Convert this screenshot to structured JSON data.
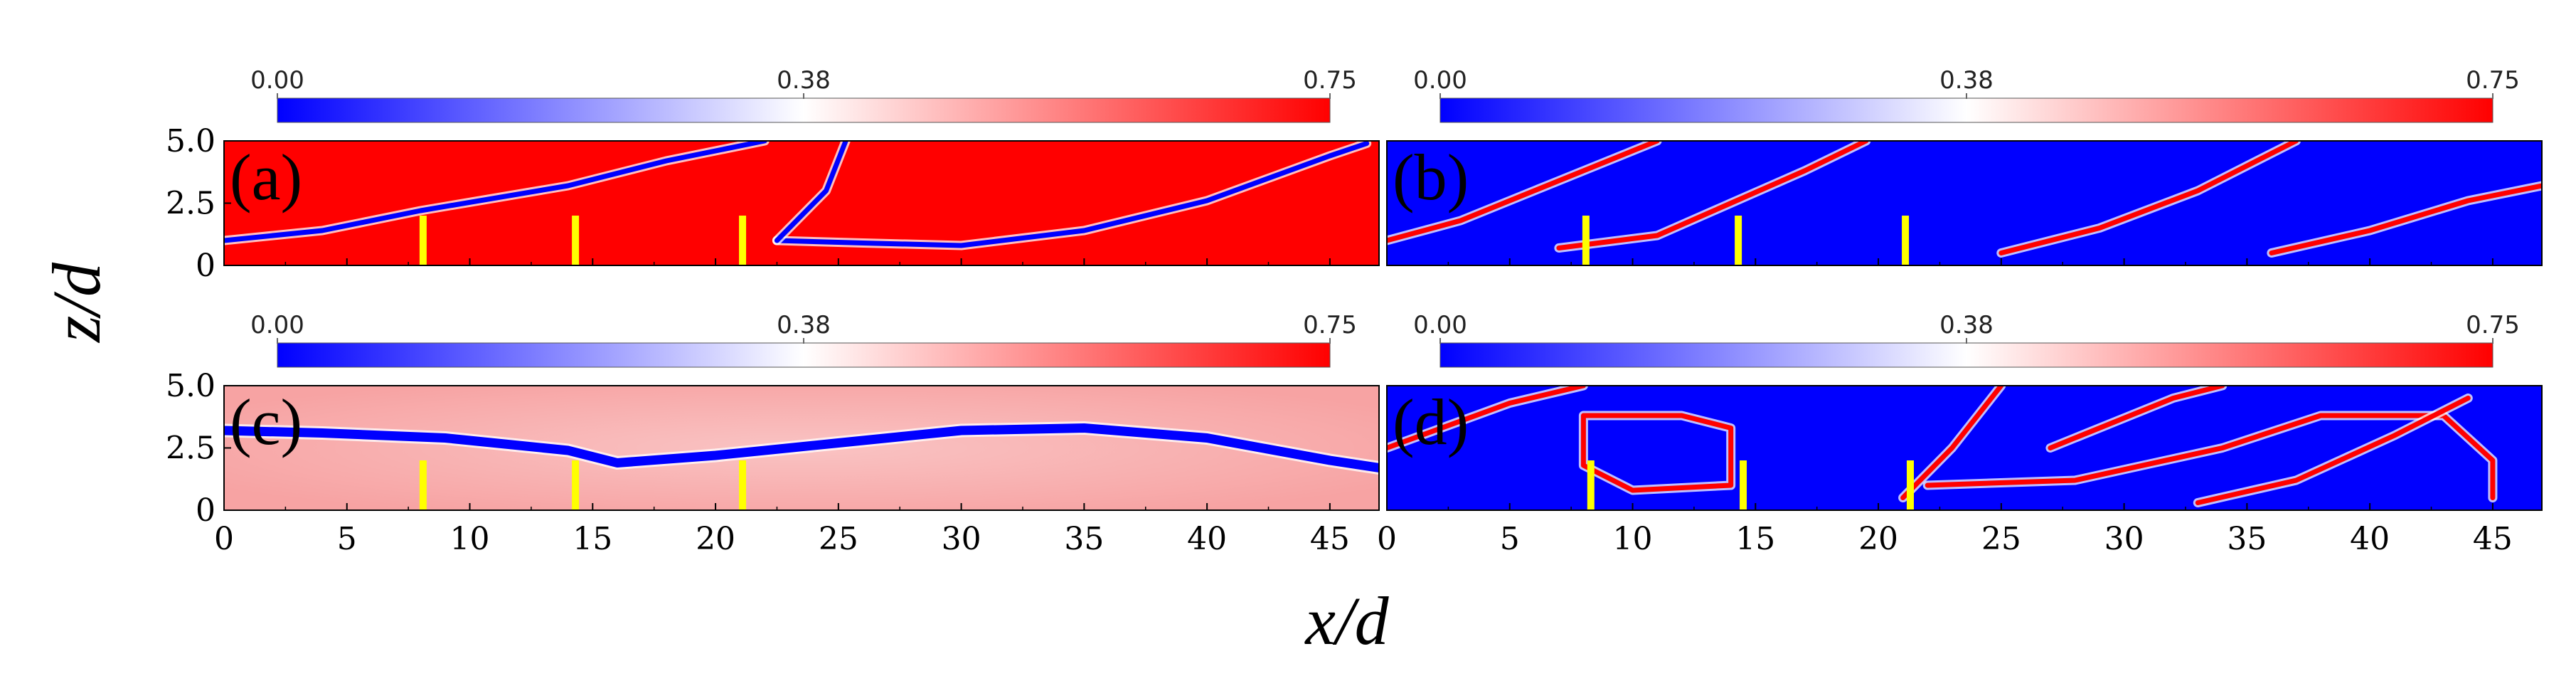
{
  "chart_data": {
    "type": "heatmap",
    "title": "",
    "xlabel": "x/d",
    "ylabel": "z/d",
    "x_ticks": [
      0,
      5,
      10,
      15,
      20,
      25,
      30,
      35,
      40,
      45
    ],
    "y_ticks": [
      "0",
      "2.5",
      "5.0"
    ],
    "xlim": [
      0,
      47
    ],
    "ylim": [
      0,
      5
    ],
    "colorbar": {
      "ticks": [
        "0.00",
        "0.38",
        "0.75"
      ],
      "range": [
        0,
        0.75
      ],
      "low_color": "#0000ff",
      "mid_color": "#ffffff",
      "high_color": "#ff0000"
    },
    "marker_color": "#ffff00",
    "panels": [
      {
        "label": "(a)",
        "background": "#ff0000",
        "interface_color": "#0000ff",
        "markers": [
          {
            "x": 8.1,
            "z0": 0.0,
            "z1": 2.0
          },
          {
            "x": 14.3,
            "z0": 0.0,
            "z1": 2.0
          },
          {
            "x": 21.1,
            "z0": 0.0,
            "z1": 2.0
          }
        ],
        "interfaces": [
          [
            [
              0,
              1.0
            ],
            [
              4,
              1.4
            ],
            [
              8,
              2.2
            ],
            [
              14,
              3.2
            ],
            [
              18,
              4.2
            ],
            [
              22,
              5.0
            ]
          ],
          [
            [
              22.5,
              1.0
            ],
            [
              26,
              0.9
            ],
            [
              30,
              0.8
            ],
            [
              35,
              1.4
            ],
            [
              40,
              2.6
            ],
            [
              45,
              4.4
            ],
            [
              46.5,
              4.9
            ]
          ],
          [
            [
              22.5,
              1.0
            ],
            [
              24.5,
              3.0
            ],
            [
              25.3,
              5.0
            ]
          ]
        ]
      },
      {
        "label": "(b)",
        "background": "#0000ff",
        "interface_color": "#ff0000",
        "markers": [
          {
            "x": 8.1,
            "z0": 0.0,
            "z1": 2.0
          },
          {
            "x": 14.3,
            "z0": 0.0,
            "z1": 2.0
          },
          {
            "x": 21.1,
            "z0": 0.0,
            "z1": 2.0
          }
        ],
        "interfaces": [
          [
            [
              0,
              1.0
            ],
            [
              3,
              1.8
            ],
            [
              6,
              3.0
            ],
            [
              9,
              4.2
            ],
            [
              11,
              5.0
            ]
          ],
          [
            [
              7,
              0.7
            ],
            [
              11,
              1.2
            ],
            [
              14,
              2.5
            ],
            [
              17,
              3.8
            ],
            [
              19.5,
              5.0
            ]
          ],
          [
            [
              25,
              0.5
            ],
            [
              29,
              1.5
            ],
            [
              33,
              3.0
            ],
            [
              37,
              5.0
            ]
          ],
          [
            [
              36,
              0.5
            ],
            [
              40,
              1.4
            ],
            [
              44,
              2.6
            ],
            [
              47,
              3.2
            ]
          ]
        ]
      },
      {
        "label": "(c)",
        "background": "#f7a3a3",
        "interface_color": "#0000ff",
        "markers": [
          {
            "x": 8.1,
            "z0": 0.0,
            "z1": 2.0
          },
          {
            "x": 14.3,
            "z0": 0.0,
            "z1": 2.0
          },
          {
            "x": 21.1,
            "z0": 0.0,
            "z1": 2.0
          }
        ],
        "interfaces": [
          [
            [
              0,
              3.2
            ],
            [
              4,
              3.1
            ],
            [
              9,
              2.9
            ],
            [
              14,
              2.4
            ],
            [
              16,
              1.9
            ],
            [
              20,
              2.2
            ],
            [
              25,
              2.7
            ],
            [
              30,
              3.2
            ],
            [
              35,
              3.3
            ],
            [
              40,
              2.9
            ],
            [
              45,
              2.0
            ],
            [
              47,
              1.7
            ]
          ]
        ]
      },
      {
        "label": "(d)",
        "background": "#0000ff",
        "interface_color": "#ff0000",
        "markers": [
          {
            "x": 8.3,
            "z0": 0.0,
            "z1": 2.0
          },
          {
            "x": 14.5,
            "z0": 0.0,
            "z1": 2.0
          },
          {
            "x": 21.3,
            "z0": 0.0,
            "z1": 2.0
          }
        ],
        "interfaces": [
          [
            [
              0,
              2.5
            ],
            [
              5,
              4.3
            ],
            [
              8,
              5.0
            ]
          ],
          [
            [
              8,
              3.8
            ],
            [
              12,
              3.8
            ],
            [
              14,
              3.3
            ],
            [
              14,
              1.0
            ],
            [
              10,
              0.8
            ],
            [
              8,
              1.8
            ],
            [
              8,
              3.8
            ]
          ],
          [
            [
              21,
              0.5
            ],
            [
              23,
              2.5
            ],
            [
              25,
              5.0
            ]
          ],
          [
            [
              22,
              1.0
            ],
            [
              28,
              1.2
            ],
            [
              34,
              2.5
            ],
            [
              38,
              3.8
            ],
            [
              43,
              3.8
            ],
            [
              45,
              2.0
            ],
            [
              45,
              0.5
            ]
          ],
          [
            [
              33,
              0.3
            ],
            [
              37,
              1.2
            ],
            [
              41,
              3.0
            ],
            [
              44,
              4.5
            ]
          ],
          [
            [
              27,
              2.5
            ],
            [
              32,
              4.5
            ],
            [
              34,
              5.0
            ]
          ]
        ]
      }
    ]
  }
}
